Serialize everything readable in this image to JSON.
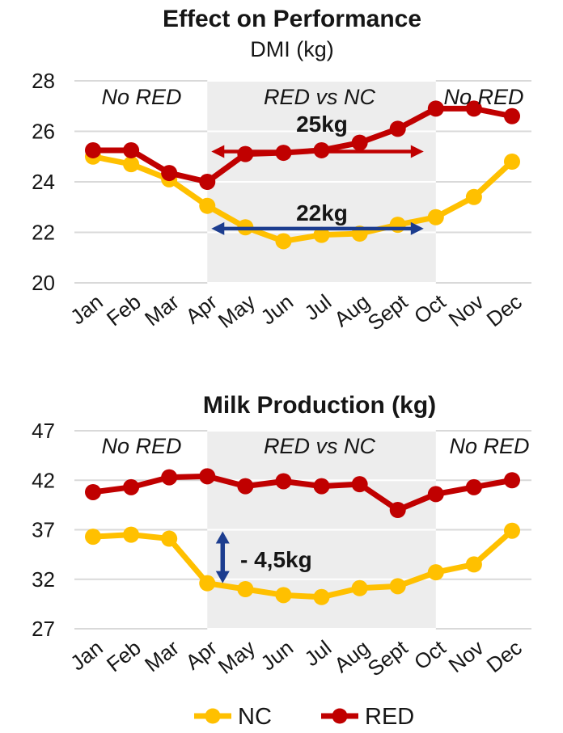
{
  "colors": {
    "nc": "#FFC000",
    "red": "#C00000",
    "arrow_blue": "#1C3D8F",
    "grid": "#D9D9D9",
    "shade": "#EDEDED",
    "text": "#161616"
  },
  "legend": {
    "items": [
      {
        "label": "NC",
        "color_key": "nc"
      },
      {
        "label": "RED",
        "color_key": "red"
      }
    ]
  },
  "chart_data": [
    {
      "type": "line",
      "title": "Effect on Performance",
      "subtitle": "DMI (kg)",
      "categories": [
        "Jan",
        "Feb",
        "Mar",
        "Apr",
        "May",
        "Jun",
        "Jul",
        "Aug",
        "Sept",
        "Oct",
        "Nov",
        "Dec"
      ],
      "ylim": [
        20,
        28
      ],
      "yticks": [
        20,
        22,
        24,
        26,
        28
      ],
      "grid": true,
      "legend_position": "bottom",
      "shaded_region": {
        "from": "Apr",
        "to": "Oct"
      },
      "series": [
        {
          "name": "NC",
          "color_key": "nc",
          "values": [
            25.0,
            24.7,
            24.1,
            23.05,
            22.2,
            21.65,
            21.9,
            21.95,
            22.3,
            22.6,
            23.4,
            24.8
          ]
        },
        {
          "name": "RED",
          "color_key": "red",
          "values": [
            25.25,
            25.25,
            24.35,
            24.0,
            25.1,
            25.15,
            25.25,
            25.55,
            26.1,
            26.9,
            26.9,
            26.6
          ]
        }
      ],
      "annotations": {
        "phases": [
          "No RED",
          "RED vs NC",
          "No RED"
        ],
        "red_arrow": {
          "label": "25kg",
          "at_y": 25.2,
          "from_month": "Apr",
          "to_month": "Oct"
        },
        "blue_arrow": {
          "label": "22kg",
          "at_y": 22.15,
          "from_month": "Apr",
          "to_month": "Oct"
        }
      }
    },
    {
      "type": "line",
      "title": "Milk Production (kg)",
      "categories": [
        "Jan",
        "Feb",
        "Mar",
        "Apr",
        "May",
        "Jun",
        "Jul",
        "Aug",
        "Sept",
        "Oct",
        "Nov",
        "Dec"
      ],
      "ylim": [
        27,
        47
      ],
      "yticks": [
        27,
        32,
        37,
        42,
        47
      ],
      "grid": true,
      "legend_position": "bottom",
      "shaded_region": {
        "from": "Apr",
        "to": "Oct"
      },
      "series": [
        {
          "name": "NC",
          "color_key": "nc",
          "values": [
            36.3,
            36.5,
            36.1,
            31.6,
            31.0,
            30.4,
            30.2,
            31.1,
            31.3,
            32.7,
            33.5,
            36.9
          ]
        },
        {
          "name": "RED",
          "color_key": "red",
          "values": [
            40.8,
            41.3,
            42.3,
            42.4,
            41.4,
            41.9,
            41.4,
            41.6,
            39.0,
            40.6,
            41.3,
            42.0
          ]
        }
      ],
      "annotations": {
        "phases": [
          "No RED",
          "RED vs NC",
          "No RED"
        ],
        "vert_arrow": {
          "label": "- 4,5kg",
          "at_month": "Apr",
          "from_y": 37.0,
          "to_y": 31.6
        }
      }
    }
  ]
}
